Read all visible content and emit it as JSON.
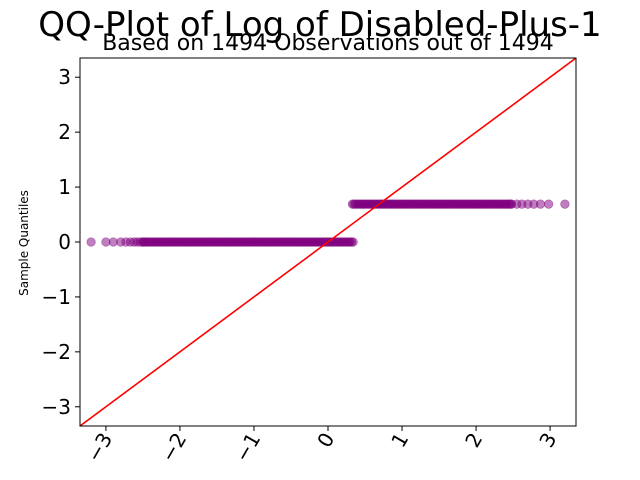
{
  "chart_data": {
    "type": "scatter",
    "title": "QQ-Plot of Log of Disabled-Plus-1",
    "subtitle": "Based on 1494 Observations out of 1494",
    "xlabel": "",
    "ylabel": "Sample Quantiles",
    "xlim": [
      -3.35,
      3.35
    ],
    "ylim": [
      -3.35,
      3.35
    ],
    "xticks": [
      -3,
      -2,
      -1,
      0,
      1,
      2,
      3
    ],
    "yticks": [
      -3,
      -2,
      -1,
      0,
      1,
      2,
      3
    ],
    "xtick_labels": [
      "−3",
      "−2",
      "−1",
      "0",
      "1",
      "2",
      "3"
    ],
    "ytick_labels": [
      "−3",
      "−2",
      "−1",
      "0",
      "1",
      "2",
      "3"
    ],
    "xtick_rotation_deg": -60,
    "grid": false,
    "series": [
      {
        "role": "lower-group",
        "color": "#800080",
        "y": 0,
        "x_points": [
          -3.2,
          -3.0,
          -2.9,
          -2.8,
          -2.73,
          -2.67,
          -2.62,
          -2.58,
          -2.54,
          -2.5
        ],
        "dense_x_range": [
          -2.5,
          0.35
        ]
      },
      {
        "role": "upper-group",
        "color": "#800080",
        "y": 0.69,
        "x_points": [
          2.48,
          2.55,
          2.62,
          2.7,
          2.78,
          2.87,
          2.98,
          3.2
        ],
        "dense_x_range": [
          0.33,
          2.48
        ]
      }
    ],
    "reference_line": {
      "color": "#ff0000",
      "slope": 1,
      "intercept": 0
    }
  }
}
